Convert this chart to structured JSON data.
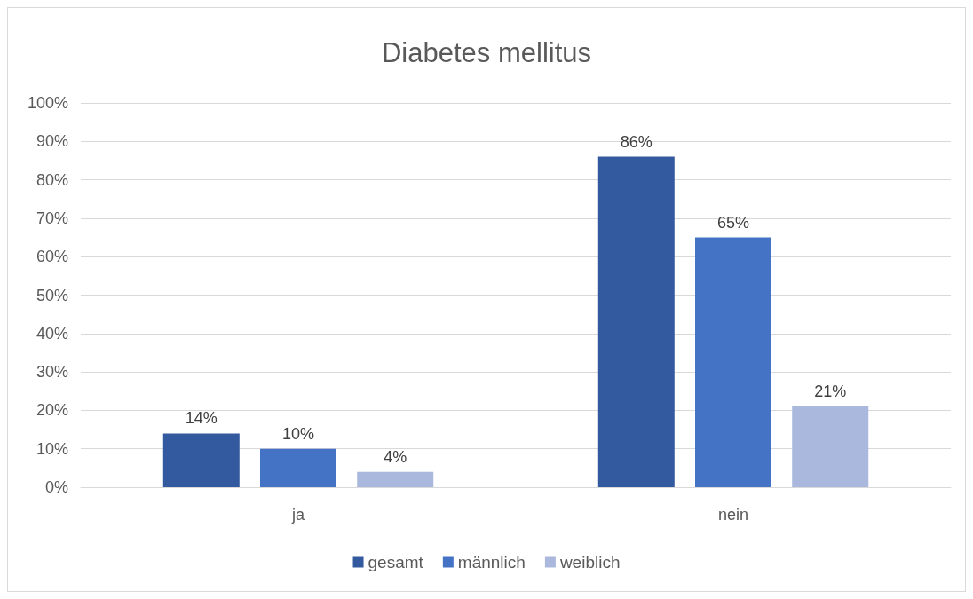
{
  "chart_data": {
    "type": "bar",
    "title": "Diabetes mellitus",
    "categories": [
      "ja",
      "nein"
    ],
    "series": [
      {
        "name": "gesamt",
        "color": "#335a9e",
        "values": [
          14,
          86
        ],
        "value_labels": [
          "14%",
          "86%"
        ]
      },
      {
        "name": "männlich",
        "color": "#4472c4",
        "values": [
          10,
          65
        ],
        "value_labels": [
          "10%",
          "65%"
        ]
      },
      {
        "name": "weiblich",
        "color": "#a9b8dc",
        "values": [
          4,
          21
        ],
        "value_labels": [
          "4%",
          "21%"
        ]
      }
    ],
    "ylim": [
      0,
      100
    ],
    "yticks": [
      {
        "value": 0,
        "label": "0%"
      },
      {
        "value": 10,
        "label": "10%"
      },
      {
        "value": 20,
        "label": "20%"
      },
      {
        "value": 30,
        "label": "30%"
      },
      {
        "value": 40,
        "label": "40%"
      },
      {
        "value": 50,
        "label": "50%"
      },
      {
        "value": 60,
        "label": "60%"
      },
      {
        "value": 70,
        "label": "70%"
      },
      {
        "value": 80,
        "label": "80%"
      },
      {
        "value": 90,
        "label": "90%"
      },
      {
        "value": 100,
        "label": "100%"
      }
    ],
    "grid": "y",
    "legend": "bottom"
  }
}
